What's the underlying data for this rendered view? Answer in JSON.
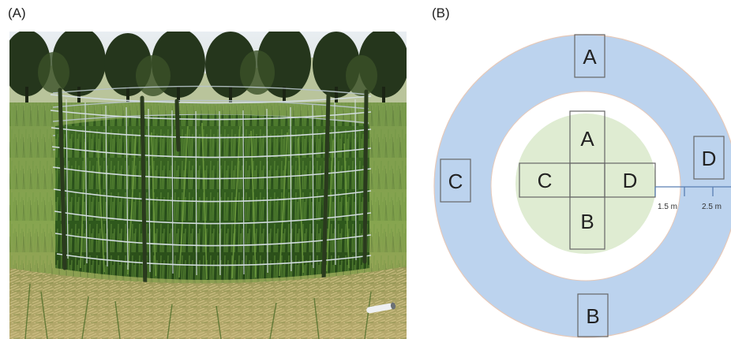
{
  "panels": {
    "a_label": "(A)",
    "b_label": "(B)"
  },
  "diagram": {
    "outer_ring": {
      "A": "A",
      "B": "B",
      "C": "C",
      "D": "D"
    },
    "inner_plot": {
      "A": "A",
      "B": "B",
      "C": "C",
      "D": "D"
    },
    "scale": {
      "inner_distance": "1.5 m",
      "outer_distance": "2.5 m"
    },
    "colors": {
      "outer_ring": "#bcd3ee",
      "inner_circle": "#dfecd2",
      "quadrat_border": "#666666",
      "scale_line": "#5a7fb2"
    }
  }
}
